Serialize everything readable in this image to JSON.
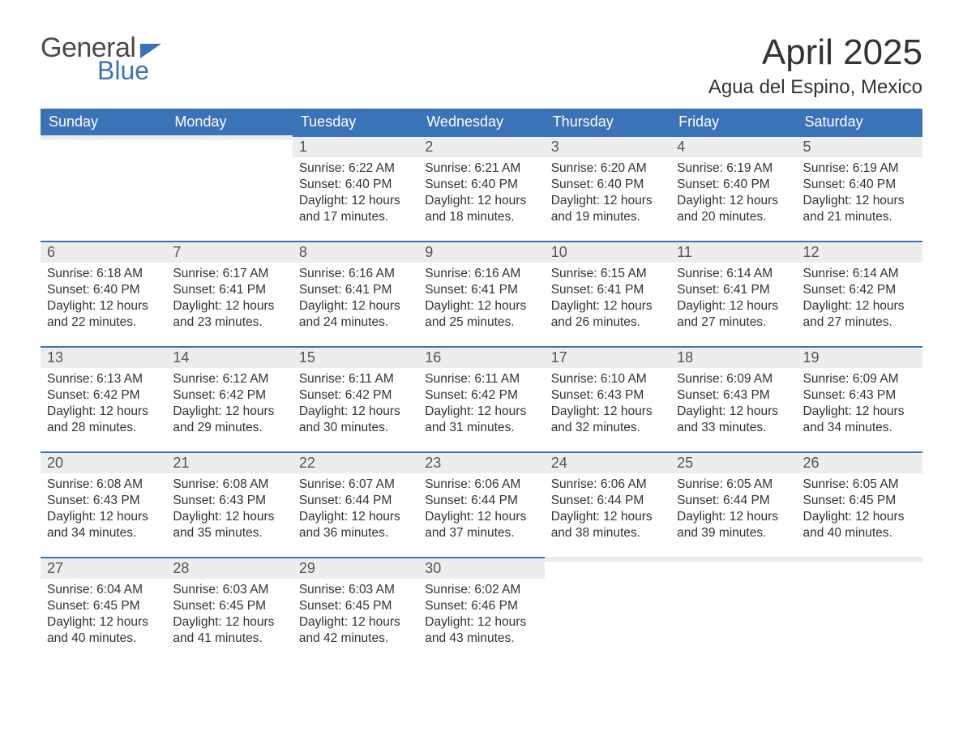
{
  "logo": {
    "general": "General",
    "blue": "Blue"
  },
  "title": "April 2025",
  "location": "Agua del Espino, Mexico",
  "colors": {
    "header_bg": "#3b73b9",
    "header_text": "#ffffff",
    "day_bg": "#ededed",
    "border_top": "#3b73b9",
    "text": "#333333",
    "logo_gray": "#4a4a4a",
    "logo_blue": "#3b73b9",
    "page_bg": "#ffffff"
  },
  "weekdays": [
    "Sunday",
    "Monday",
    "Tuesday",
    "Wednesday",
    "Thursday",
    "Friday",
    "Saturday"
  ],
  "weeks": [
    [
      {
        "day": "",
        "sunrise": "",
        "sunset": "",
        "daylight": ""
      },
      {
        "day": "",
        "sunrise": "",
        "sunset": "",
        "daylight": ""
      },
      {
        "day": "1",
        "sunrise": "Sunrise: 6:22 AM",
        "sunset": "Sunset: 6:40 PM",
        "daylight": "Daylight: 12 hours and 17 minutes."
      },
      {
        "day": "2",
        "sunrise": "Sunrise: 6:21 AM",
        "sunset": "Sunset: 6:40 PM",
        "daylight": "Daylight: 12 hours and 18 minutes."
      },
      {
        "day": "3",
        "sunrise": "Sunrise: 6:20 AM",
        "sunset": "Sunset: 6:40 PM",
        "daylight": "Daylight: 12 hours and 19 minutes."
      },
      {
        "day": "4",
        "sunrise": "Sunrise: 6:19 AM",
        "sunset": "Sunset: 6:40 PM",
        "daylight": "Daylight: 12 hours and 20 minutes."
      },
      {
        "day": "5",
        "sunrise": "Sunrise: 6:19 AM",
        "sunset": "Sunset: 6:40 PM",
        "daylight": "Daylight: 12 hours and 21 minutes."
      }
    ],
    [
      {
        "day": "6",
        "sunrise": "Sunrise: 6:18 AM",
        "sunset": "Sunset: 6:40 PM",
        "daylight": "Daylight: 12 hours and 22 minutes."
      },
      {
        "day": "7",
        "sunrise": "Sunrise: 6:17 AM",
        "sunset": "Sunset: 6:41 PM",
        "daylight": "Daylight: 12 hours and 23 minutes."
      },
      {
        "day": "8",
        "sunrise": "Sunrise: 6:16 AM",
        "sunset": "Sunset: 6:41 PM",
        "daylight": "Daylight: 12 hours and 24 minutes."
      },
      {
        "day": "9",
        "sunrise": "Sunrise: 6:16 AM",
        "sunset": "Sunset: 6:41 PM",
        "daylight": "Daylight: 12 hours and 25 minutes."
      },
      {
        "day": "10",
        "sunrise": "Sunrise: 6:15 AM",
        "sunset": "Sunset: 6:41 PM",
        "daylight": "Daylight: 12 hours and 26 minutes."
      },
      {
        "day": "11",
        "sunrise": "Sunrise: 6:14 AM",
        "sunset": "Sunset: 6:41 PM",
        "daylight": "Daylight: 12 hours and 27 minutes."
      },
      {
        "day": "12",
        "sunrise": "Sunrise: 6:14 AM",
        "sunset": "Sunset: 6:42 PM",
        "daylight": "Daylight: 12 hours and 27 minutes."
      }
    ],
    [
      {
        "day": "13",
        "sunrise": "Sunrise: 6:13 AM",
        "sunset": "Sunset: 6:42 PM",
        "daylight": "Daylight: 12 hours and 28 minutes."
      },
      {
        "day": "14",
        "sunrise": "Sunrise: 6:12 AM",
        "sunset": "Sunset: 6:42 PM",
        "daylight": "Daylight: 12 hours and 29 minutes."
      },
      {
        "day": "15",
        "sunrise": "Sunrise: 6:11 AM",
        "sunset": "Sunset: 6:42 PM",
        "daylight": "Daylight: 12 hours and 30 minutes."
      },
      {
        "day": "16",
        "sunrise": "Sunrise: 6:11 AM",
        "sunset": "Sunset: 6:42 PM",
        "daylight": "Daylight: 12 hours and 31 minutes."
      },
      {
        "day": "17",
        "sunrise": "Sunrise: 6:10 AM",
        "sunset": "Sunset: 6:43 PM",
        "daylight": "Daylight: 12 hours and 32 minutes."
      },
      {
        "day": "18",
        "sunrise": "Sunrise: 6:09 AM",
        "sunset": "Sunset: 6:43 PM",
        "daylight": "Daylight: 12 hours and 33 minutes."
      },
      {
        "day": "19",
        "sunrise": "Sunrise: 6:09 AM",
        "sunset": "Sunset: 6:43 PM",
        "daylight": "Daylight: 12 hours and 34 minutes."
      }
    ],
    [
      {
        "day": "20",
        "sunrise": "Sunrise: 6:08 AM",
        "sunset": "Sunset: 6:43 PM",
        "daylight": "Daylight: 12 hours and 34 minutes."
      },
      {
        "day": "21",
        "sunrise": "Sunrise: 6:08 AM",
        "sunset": "Sunset: 6:43 PM",
        "daylight": "Daylight: 12 hours and 35 minutes."
      },
      {
        "day": "22",
        "sunrise": "Sunrise: 6:07 AM",
        "sunset": "Sunset: 6:44 PM",
        "daylight": "Daylight: 12 hours and 36 minutes."
      },
      {
        "day": "23",
        "sunrise": "Sunrise: 6:06 AM",
        "sunset": "Sunset: 6:44 PM",
        "daylight": "Daylight: 12 hours and 37 minutes."
      },
      {
        "day": "24",
        "sunrise": "Sunrise: 6:06 AM",
        "sunset": "Sunset: 6:44 PM",
        "daylight": "Daylight: 12 hours and 38 minutes."
      },
      {
        "day": "25",
        "sunrise": "Sunrise: 6:05 AM",
        "sunset": "Sunset: 6:44 PM",
        "daylight": "Daylight: 12 hours and 39 minutes."
      },
      {
        "day": "26",
        "sunrise": "Sunrise: 6:05 AM",
        "sunset": "Sunset: 6:45 PM",
        "daylight": "Daylight: 12 hours and 40 minutes."
      }
    ],
    [
      {
        "day": "27",
        "sunrise": "Sunrise: 6:04 AM",
        "sunset": "Sunset: 6:45 PM",
        "daylight": "Daylight: 12 hours and 40 minutes."
      },
      {
        "day": "28",
        "sunrise": "Sunrise: 6:03 AM",
        "sunset": "Sunset: 6:45 PM",
        "daylight": "Daylight: 12 hours and 41 minutes."
      },
      {
        "day": "29",
        "sunrise": "Sunrise: 6:03 AM",
        "sunset": "Sunset: 6:45 PM",
        "daylight": "Daylight: 12 hours and 42 minutes."
      },
      {
        "day": "30",
        "sunrise": "Sunrise: 6:02 AM",
        "sunset": "Sunset: 6:46 PM",
        "daylight": "Daylight: 12 hours and 43 minutes."
      },
      {
        "day": "",
        "sunrise": "",
        "sunset": "",
        "daylight": ""
      },
      {
        "day": "",
        "sunrise": "",
        "sunset": "",
        "daylight": ""
      },
      {
        "day": "",
        "sunrise": "",
        "sunset": "",
        "daylight": ""
      }
    ]
  ]
}
